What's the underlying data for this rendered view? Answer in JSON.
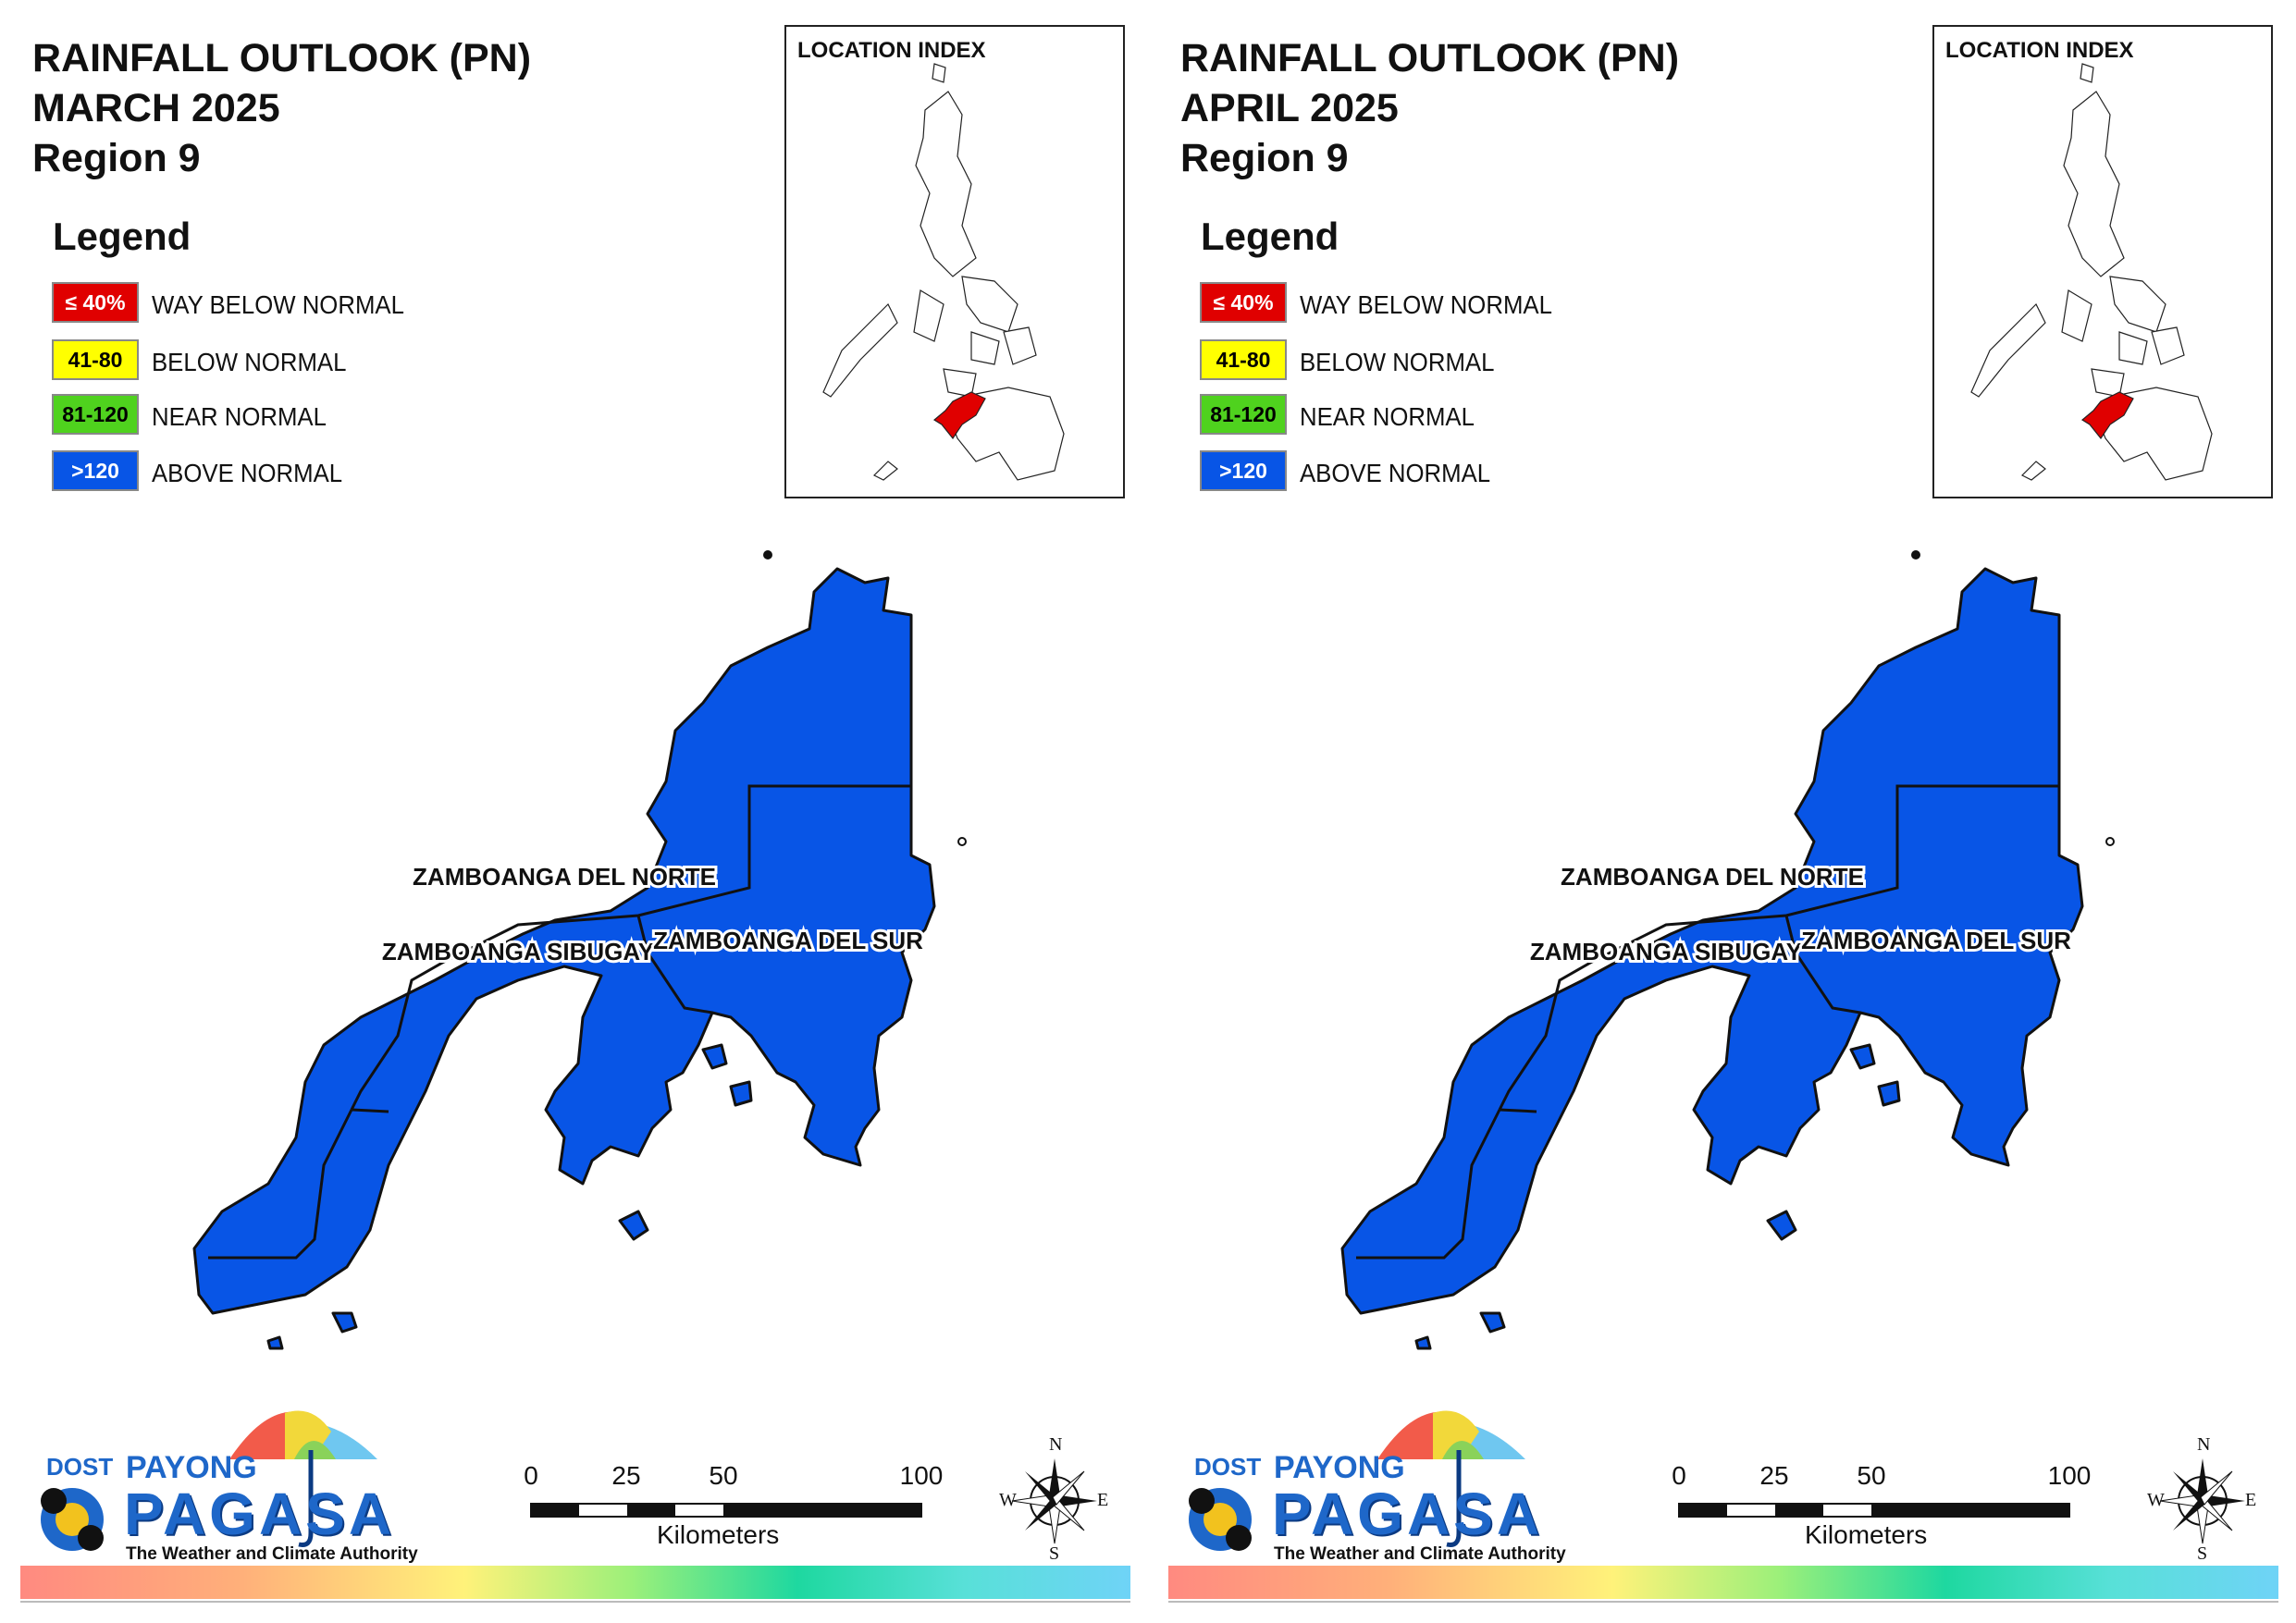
{
  "panels": [
    {
      "title_line1": "RAINFALL OUTLOOK (PN)",
      "title_line2": "MARCH 2025",
      "title_line3": "Region 9"
    },
    {
      "title_line1": "RAINFALL OUTLOOK (PN)",
      "title_line2": "APRIL 2025",
      "title_line3": "Region 9"
    }
  ],
  "legend": {
    "heading": "Legend",
    "items": [
      {
        "range": "≤ 40%",
        "label": "WAY BELOW NORMAL",
        "color": "#e00000",
        "text_color": "#ffffff"
      },
      {
        "range": "41-80",
        "label": "BELOW NORMAL",
        "color": "#ffff00",
        "text_color": "#000000"
      },
      {
        "range": "81-120",
        "label": "NEAR NORMAL",
        "color": "#4fd21e",
        "text_color": "#000000"
      },
      {
        "range": ">120",
        "label": "ABOVE NORMAL",
        "color": "#0855e6",
        "text_color": "#ffffff"
      }
    ]
  },
  "inset": {
    "title": "LOCATION INDEX",
    "highlight_color": "#e00000"
  },
  "map": {
    "fill_color": "#0855e6",
    "provinces": [
      {
        "name": "ZAMBOANGA DEL NORTE",
        "category": "ABOVE NORMAL"
      },
      {
        "name": "ZAMBOANGA SIBUGAY",
        "category": "ABOVE NORMAL"
      },
      {
        "name": "ZAMBOANGA DEL SUR",
        "category": "ABOVE NORMAL"
      }
    ]
  },
  "scale": {
    "ticks": [
      "0",
      "25",
      "50",
      "100"
    ],
    "unit": "Kilometers"
  },
  "compass": {
    "n": "N",
    "e": "E",
    "s": "S",
    "w": "W"
  },
  "logo": {
    "dost": "DOST",
    "payong": "PAYONG",
    "pagasa": "PAGASA",
    "tagline": "The Weather and Climate Authority"
  }
}
